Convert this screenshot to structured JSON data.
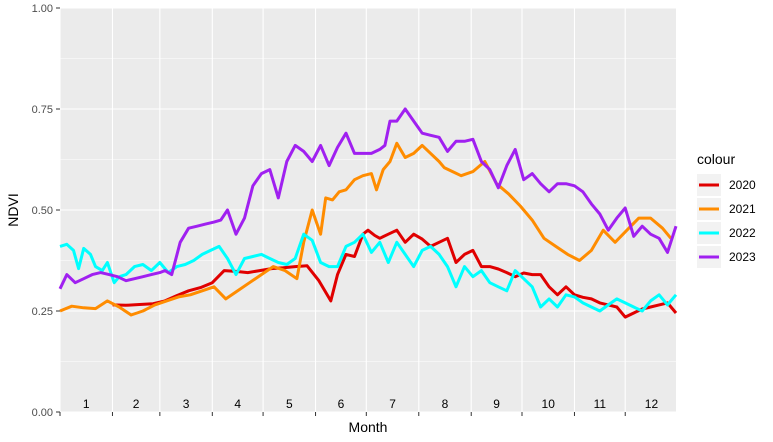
{
  "chart_data": {
    "type": "line",
    "xlabel": "Month",
    "ylabel": "NDVI",
    "x_unit": "day of year",
    "xlim": [
      1,
      365
    ],
    "ylim": [
      0,
      1
    ],
    "grid": true,
    "legend_title": "colour",
    "legend_position": "right",
    "y_ticks": [
      0,
      0.25,
      0.5,
      0.75,
      1
    ],
    "y_tick_labels": [
      "0.00",
      "0.25",
      "0.50",
      "0.75",
      "1.00"
    ],
    "month_labels": [
      "1",
      "2",
      "3",
      "4",
      "5",
      "6",
      "7",
      "8",
      "9",
      "10",
      "11",
      "12"
    ],
    "series": [
      {
        "name": "2020",
        "color": "#e00000",
        "x": [
          32,
          40,
          48,
          56,
          63,
          70,
          77,
          84,
          91,
          98,
          105,
          112,
          119,
          126,
          133,
          140,
          147,
          154,
          161,
          165,
          170,
          175,
          180,
          183,
          187,
          190,
          195,
          200,
          205,
          210,
          215,
          220,
          225,
          230,
          235,
          240,
          245,
          250,
          255,
          260,
          265,
          270,
          275,
          280,
          285,
          290,
          295,
          300,
          305,
          310,
          315,
          320,
          325,
          330,
          335,
          340,
          345,
          350,
          355,
          360,
          365
        ],
        "values": [
          0.265,
          0.264,
          0.266,
          0.268,
          0.275,
          0.288,
          0.3,
          0.308,
          0.32,
          0.35,
          0.348,
          0.345,
          0.35,
          0.355,
          0.357,
          0.36,
          0.362,
          0.325,
          0.275,
          0.34,
          0.39,
          0.385,
          0.44,
          0.45,
          0.437,
          0.43,
          0.44,
          0.45,
          0.42,
          0.44,
          0.428,
          0.41,
          0.42,
          0.43,
          0.37,
          0.39,
          0.4,
          0.36,
          0.36,
          0.354,
          0.345,
          0.335,
          0.344,
          0.34,
          0.34,
          0.31,
          0.29,
          0.31,
          0.29,
          0.284,
          0.28,
          0.27,
          0.265,
          0.26,
          0.235,
          0.245,
          0.255,
          0.26,
          0.265,
          0.27,
          0.245
        ]
      },
      {
        "name": "2021",
        "color": "#ff8c00",
        "x": [
          1,
          8,
          15,
          22,
          29,
          36,
          43,
          50,
          57,
          64,
          71,
          78,
          85,
          92,
          99,
          106,
          113,
          120,
          127,
          134,
          141,
          145,
          150,
          155,
          158,
          162,
          166,
          170,
          175,
          180,
          185,
          188,
          192,
          196,
          200,
          205,
          210,
          215,
          220,
          225,
          228,
          233,
          238,
          245,
          252,
          259,
          266,
          273,
          280,
          287,
          294,
          301,
          308,
          315,
          322,
          329,
          336,
          343,
          350,
          357,
          362
        ],
        "values": [
          0.25,
          0.262,
          0.258,
          0.256,
          0.275,
          0.26,
          0.24,
          0.25,
          0.265,
          0.275,
          0.285,
          0.29,
          0.3,
          0.31,
          0.28,
          0.3,
          0.32,
          0.34,
          0.36,
          0.35,
          0.33,
          0.42,
          0.5,
          0.44,
          0.53,
          0.525,
          0.545,
          0.55,
          0.575,
          0.585,
          0.59,
          0.55,
          0.6,
          0.62,
          0.665,
          0.63,
          0.64,
          0.66,
          0.64,
          0.62,
          0.605,
          0.595,
          0.585,
          0.595,
          0.62,
          0.565,
          0.54,
          0.51,
          0.475,
          0.43,
          0.41,
          0.39,
          0.375,
          0.4,
          0.45,
          0.42,
          0.45,
          0.48,
          0.48,
          0.455,
          0.43
        ]
      },
      {
        "name": "2022",
        "color": "#00ffff",
        "x": [
          1,
          5,
          9,
          12,
          15,
          19,
          22,
          26,
          29,
          33,
          36,
          40,
          45,
          50,
          55,
          60,
          65,
          70,
          75,
          80,
          85,
          90,
          95,
          100,
          105,
          110,
          115,
          120,
          125,
          130,
          135,
          140,
          145,
          150,
          155,
          160,
          165,
          170,
          175,
          180,
          185,
          190,
          195,
          200,
          205,
          210,
          215,
          220,
          225,
          230,
          235,
          240,
          245,
          250,
          255,
          260,
          265,
          270,
          275,
          280,
          285,
          290,
          295,
          300,
          305,
          310,
          315,
          320,
          325,
          330,
          335,
          340,
          345,
          350,
          355,
          360,
          365
        ],
        "values": [
          0.41,
          0.415,
          0.4,
          0.355,
          0.405,
          0.39,
          0.36,
          0.35,
          0.37,
          0.32,
          0.335,
          0.34,
          0.36,
          0.365,
          0.35,
          0.37,
          0.345,
          0.36,
          0.365,
          0.375,
          0.39,
          0.4,
          0.41,
          0.38,
          0.34,
          0.38,
          0.385,
          0.39,
          0.38,
          0.37,
          0.365,
          0.38,
          0.44,
          0.425,
          0.37,
          0.36,
          0.36,
          0.41,
          0.42,
          0.44,
          0.395,
          0.42,
          0.37,
          0.42,
          0.39,
          0.36,
          0.4,
          0.41,
          0.39,
          0.36,
          0.31,
          0.36,
          0.335,
          0.35,
          0.32,
          0.31,
          0.3,
          0.35,
          0.33,
          0.31,
          0.26,
          0.28,
          0.26,
          0.29,
          0.285,
          0.27,
          0.26,
          0.25,
          0.265,
          0.28,
          0.27,
          0.26,
          0.25,
          0.275,
          0.29,
          0.265,
          0.29
        ]
      },
      {
        "name": "2023",
        "color": "#a020f0",
        "x": [
          1,
          5,
          10,
          15,
          20,
          25,
          30,
          35,
          40,
          45,
          50,
          55,
          60,
          63,
          67,
          72,
          77,
          82,
          87,
          92,
          96,
          100,
          105,
          110,
          115,
          120,
          125,
          130,
          135,
          140,
          145,
          150,
          155,
          160,
          165,
          170,
          175,
          180,
          185,
          190,
          193,
          196,
          200,
          205,
          210,
          215,
          220,
          225,
          230,
          235,
          240,
          245,
          250,
          255,
          260,
          265,
          270,
          275,
          280,
          285,
          290,
          295,
          300,
          305,
          310,
          315,
          320,
          325,
          330,
          335,
          340,
          345,
          350,
          355,
          360,
          365
        ],
        "values": [
          0.305,
          0.34,
          0.32,
          0.33,
          0.34,
          0.345,
          0.34,
          0.335,
          0.325,
          0.33,
          0.335,
          0.34,
          0.345,
          0.35,
          0.34,
          0.42,
          0.455,
          0.46,
          0.465,
          0.47,
          0.475,
          0.5,
          0.44,
          0.48,
          0.56,
          0.59,
          0.6,
          0.53,
          0.62,
          0.66,
          0.645,
          0.62,
          0.66,
          0.61,
          0.655,
          0.69,
          0.64,
          0.64,
          0.64,
          0.65,
          0.66,
          0.72,
          0.72,
          0.75,
          0.72,
          0.69,
          0.685,
          0.68,
          0.645,
          0.67,
          0.67,
          0.675,
          0.62,
          0.6,
          0.555,
          0.61,
          0.65,
          0.575,
          0.59,
          0.565,
          0.545,
          0.565,
          0.565,
          0.56,
          0.545,
          0.515,
          0.49,
          0.45,
          0.48,
          0.505,
          0.435,
          0.46,
          0.44,
          0.43,
          0.395,
          0.46
        ]
      }
    ]
  }
}
